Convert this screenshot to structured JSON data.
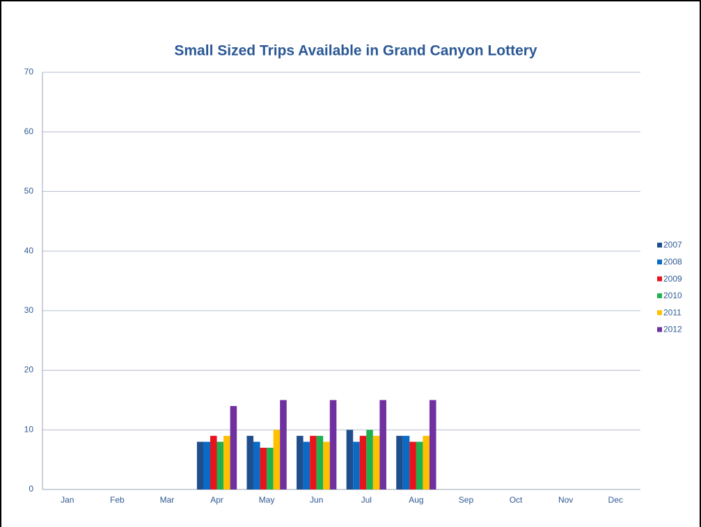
{
  "chart_data": {
    "type": "bar",
    "title": "Small Sized Trips Available in Grand Canyon Lottery",
    "categories": [
      "Jan",
      "Feb",
      "Mar",
      "Apr",
      "May",
      "Jun",
      "Jul",
      "Aug",
      "Sep",
      "Oct",
      "Nov",
      "Dec"
    ],
    "series": [
      {
        "name": "2007",
        "color": "#1f4e8c",
        "values": [
          null,
          null,
          null,
          8,
          9,
          9,
          10,
          9,
          null,
          null,
          null,
          null
        ]
      },
      {
        "name": "2008",
        "color": "#0a6ac4",
        "values": [
          null,
          null,
          null,
          8,
          8,
          8,
          8,
          9,
          null,
          null,
          null,
          null
        ]
      },
      {
        "name": "2009",
        "color": "#e8141b",
        "values": [
          null,
          null,
          null,
          9,
          7,
          9,
          9,
          8,
          null,
          null,
          null,
          null
        ]
      },
      {
        "name": "2010",
        "color": "#1fb050",
        "values": [
          null,
          null,
          null,
          8,
          7,
          9,
          10,
          8,
          null,
          null,
          null,
          null
        ]
      },
      {
        "name": "2011",
        "color": "#ffc000",
        "values": [
          null,
          null,
          null,
          9,
          10,
          8,
          9,
          9,
          null,
          null,
          null,
          null
        ]
      },
      {
        "name": "2012",
        "color": "#7030a0",
        "values": [
          null,
          null,
          null,
          14,
          15,
          15,
          15,
          15,
          null,
          null,
          null,
          null
        ]
      }
    ],
    "ylim": [
      0,
      70
    ],
    "yticks": [
      0,
      10,
      20,
      30,
      40,
      50,
      60,
      70
    ],
    "grid": true,
    "legend": "right"
  }
}
